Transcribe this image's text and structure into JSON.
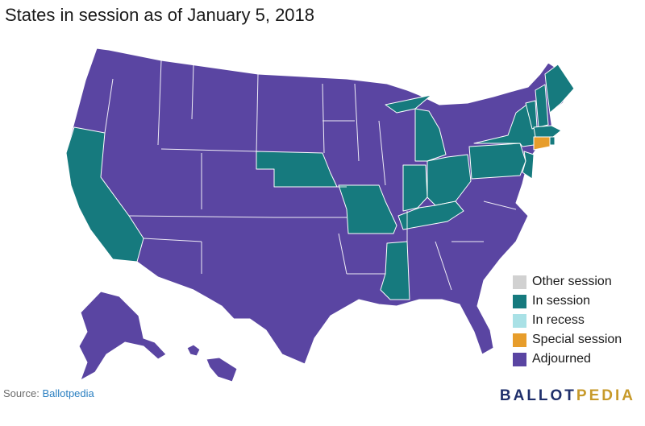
{
  "title": "States in session as of January 5, 2018",
  "legend": [
    {
      "label": "Other session",
      "color": "#d1d1d1"
    },
    {
      "label": "In session",
      "color": "#167a7e"
    },
    {
      "label": "In recess",
      "color": "#a9e1e6"
    },
    {
      "label": "Special session",
      "color": "#e79d2b"
    },
    {
      "label": "Adjourned",
      "color": "#5a45a2"
    }
  ],
  "source": {
    "prefix": "Source:",
    "link": "Ballotpedia"
  },
  "brand": {
    "part1": "BALLOT",
    "part2": "PEDIA"
  },
  "states": {
    "in_session": [
      "California",
      "Nebraska",
      "Missouri",
      "Indiana",
      "Ohio",
      "Kentucky",
      "Mississippi",
      "Michigan",
      "Pennsylvania",
      "New York",
      "New Jersey",
      "Vermont",
      "New Hampshire",
      "Maine",
      "Massachusetts",
      "Rhode Island"
    ],
    "special_session": [
      "Connecticut"
    ],
    "adjourned": [
      "all other states"
    ]
  }
}
